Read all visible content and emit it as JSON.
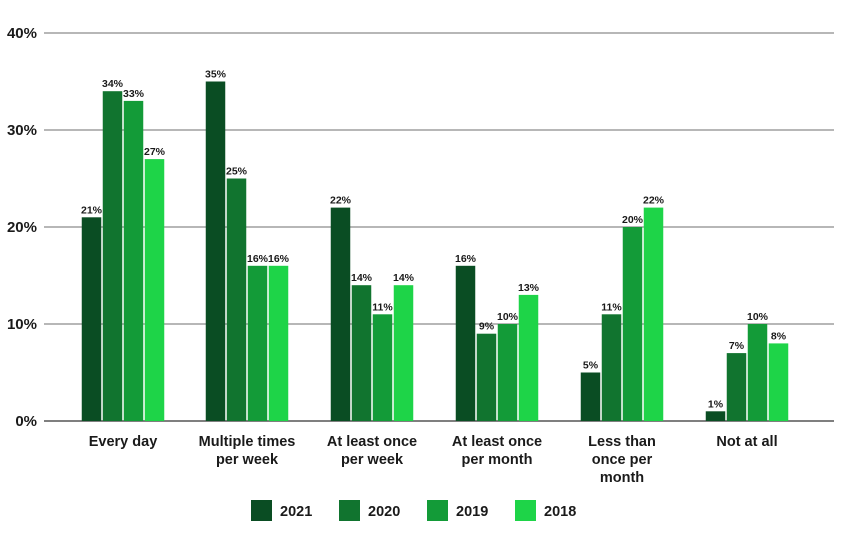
{
  "chart_data": {
    "type": "bar",
    "categories": [
      "Every day",
      "Multiple times per week",
      "At least once per week",
      "At least once per month",
      "Less than once per month",
      "Not at all"
    ],
    "series": [
      {
        "name": "2021",
        "color": "#0a4d23",
        "values": [
          21,
          35,
          22,
          16,
          5,
          1
        ]
      },
      {
        "name": "2020",
        "color": "#11742f",
        "values": [
          34,
          25,
          14,
          9,
          11,
          7
        ]
      },
      {
        "name": "2019",
        "color": "#139b38",
        "values": [
          33,
          16,
          11,
          10,
          20,
          10
        ]
      },
      {
        "name": "2018",
        "color": "#1ed448",
        "values": [
          27,
          16,
          14,
          13,
          22,
          8
        ]
      }
    ],
    "data_labels": [
      [
        "21%",
        "35%",
        "22%",
        "16%",
        "5%",
        "1%"
      ],
      [
        "34%",
        "25%",
        "14%",
        "9%",
        "11%",
        "7%"
      ],
      [
        "33%",
        "16%",
        "11%",
        "10%",
        "20%",
        "10%"
      ],
      [
        "27%",
        "16%",
        "14%",
        "13%",
        "22%",
        "8%"
      ]
    ],
    "category_labels": [
      [
        "Every day"
      ],
      [
        "Multiple times",
        "per week"
      ],
      [
        "At least once",
        "per week"
      ],
      [
        "At least once",
        "per month"
      ],
      [
        "Less than",
        "once per",
        "month"
      ],
      [
        "Not at all"
      ]
    ],
    "y_ticks": [
      "0%",
      "10%",
      "20%",
      "30%",
      "40%"
    ],
    "ylim": [
      0,
      40
    ],
    "ytick_step": 10,
    "grid": true,
    "legend_position": "bottom-center",
    "title": "",
    "xlabel": "",
    "ylabel": ""
  }
}
